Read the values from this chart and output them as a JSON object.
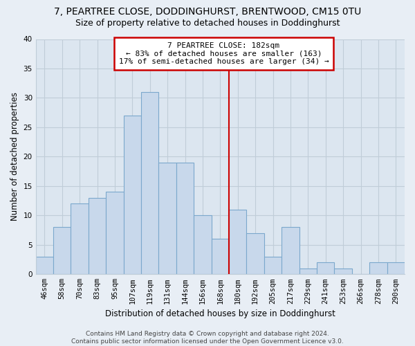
{
  "title": "7, PEARTREE CLOSE, DODDINGHURST, BRENTWOOD, CM15 0TU",
  "subtitle": "Size of property relative to detached houses in Doddinghurst",
  "xlabel": "Distribution of detached houses by size in Doddinghurst",
  "ylabel": "Number of detached properties",
  "bar_labels": [
    "46sqm",
    "58sqm",
    "70sqm",
    "83sqm",
    "95sqm",
    "107sqm",
    "119sqm",
    "131sqm",
    "144sqm",
    "156sqm",
    "168sqm",
    "180sqm",
    "192sqm",
    "205sqm",
    "217sqm",
    "229sqm",
    "241sqm",
    "253sqm",
    "266sqm",
    "278sqm",
    "290sqm"
  ],
  "bar_values": [
    3,
    8,
    12,
    13,
    14,
    27,
    31,
    19,
    19,
    10,
    6,
    11,
    7,
    3,
    8,
    1,
    2,
    1,
    0,
    2,
    2
  ],
  "bar_color": "#c8d8eb",
  "bar_edge_color": "#7ba8cc",
  "reference_line_label": "7 PEARTREE CLOSE: 182sqm",
  "annotation_line1": "← 83% of detached houses are smaller (163)",
  "annotation_line2": "17% of semi-detached houses are larger (34) →",
  "annotation_box_color": "#ffffff",
  "annotation_box_edge_color": "#cc0000",
  "reference_line_color": "#cc0000",
  "reference_line_x": 11,
  "ylim": [
    0,
    40
  ],
  "yticks": [
    0,
    5,
    10,
    15,
    20,
    25,
    30,
    35,
    40
  ],
  "footer_line1": "Contains HM Land Registry data © Crown copyright and database right 2024.",
  "footer_line2": "Contains public sector information licensed under the Open Government Licence v3.0.",
  "bg_color": "#e8eef5",
  "plot_bg_color": "#dce6f0",
  "grid_color": "#c0cdd8",
  "title_fontsize": 10,
  "subtitle_fontsize": 9,
  "axis_label_fontsize": 8.5,
  "tick_fontsize": 7.5,
  "annotation_fontsize": 8,
  "footer_fontsize": 6.5
}
